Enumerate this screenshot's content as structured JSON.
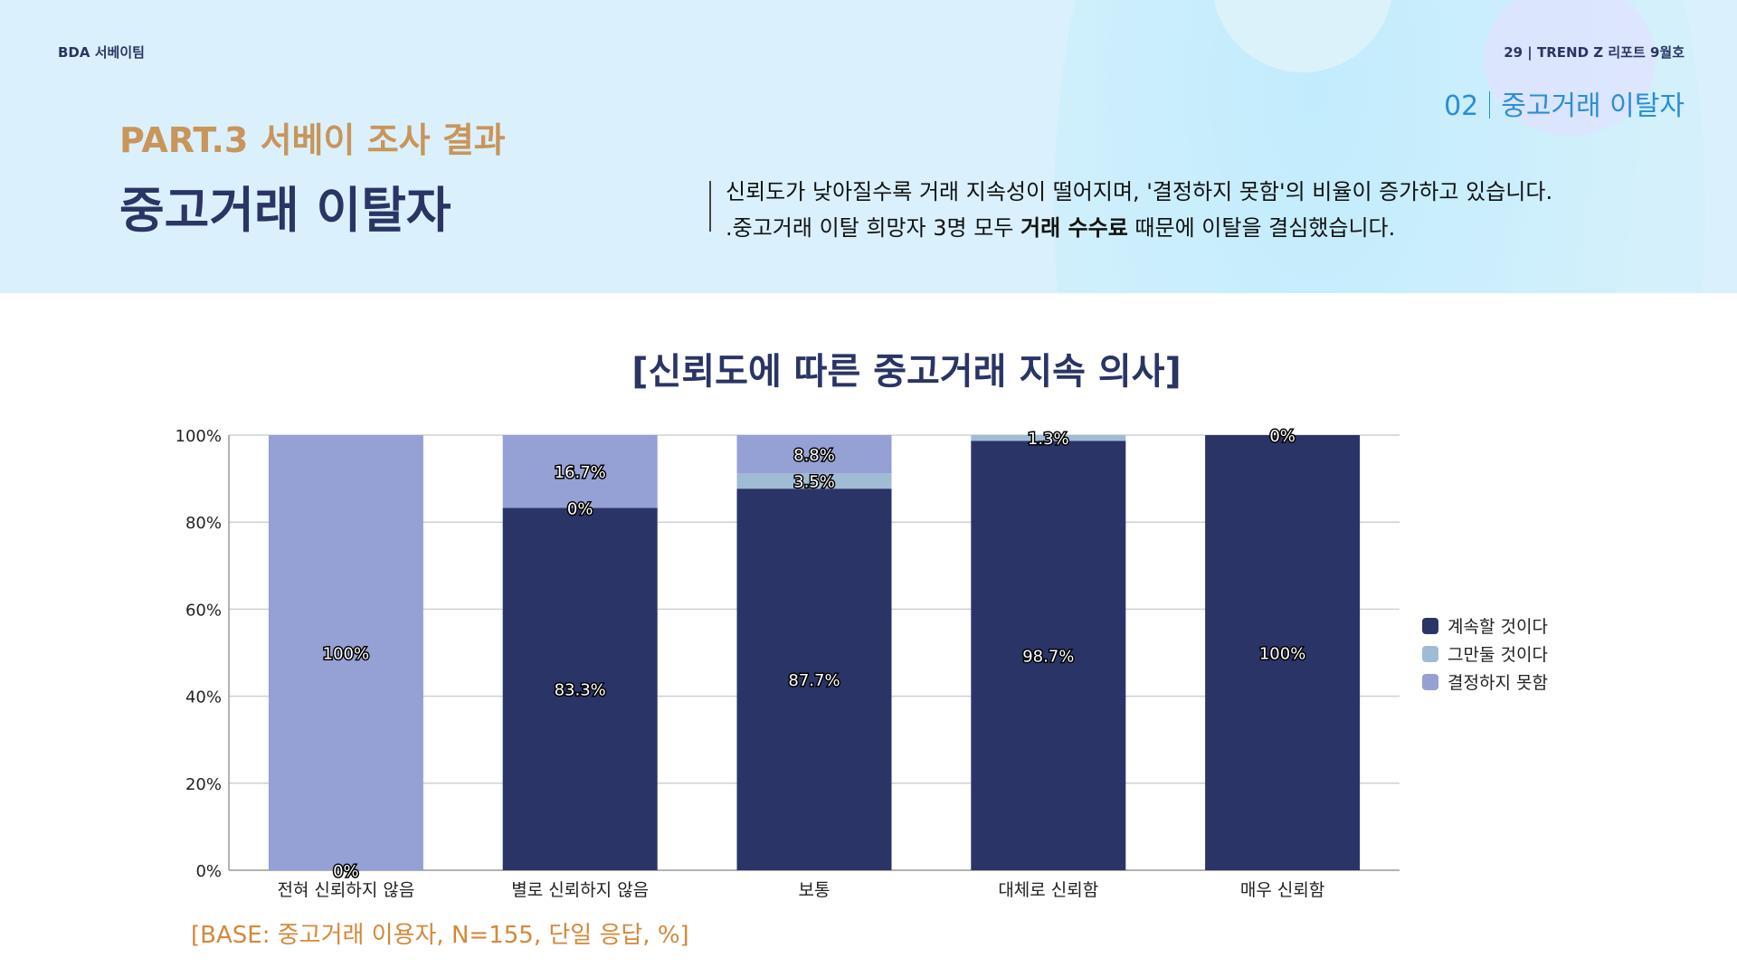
{
  "header": {
    "team": "BDA 서베이팀",
    "issue": "29 | TREND Z 리포트 9월호",
    "section_number": "02",
    "section_title": "중고거래 이탈자",
    "part": "PART.3 서베이 조사 결과",
    "title": "중고거래 이탈자",
    "desc_line1": "신뢰도가 낮아질수록 거래 지속성이 떨어지며, '결정하지 못함'의 비율이 증가하고 있습니다.",
    "desc_line2_pre": ".중고거래 이탈 희망자 3명 모두 ",
    "desc_line2_bold": "거래 수수료",
    "desc_line2_post": " 때문에 이탈을 결심했습니다."
  },
  "chart_data": {
    "type": "bar",
    "stacked": true,
    "title": "[신뢰도에 따른 중고거래 지속 의사]",
    "categories": [
      "전혀 신뢰하지 않음",
      "별로 신뢰하지 않음",
      "보통",
      "대체로 신뢰함",
      "매우 신뢰함"
    ],
    "series": [
      {
        "name": "계속할 것이다",
        "color": "#2b3467",
        "values": [
          0,
          83.3,
          87.7,
          98.7,
          100
        ],
        "label_shown": [
          true,
          true,
          true,
          true,
          true
        ]
      },
      {
        "name": "그만둘 것이다",
        "color": "#a0bcd4",
        "values": [
          0,
          0,
          3.5,
          1.3,
          0
        ],
        "label_shown": [
          false,
          true,
          true,
          true,
          true
        ]
      },
      {
        "name": "결정하지 못함",
        "color": "#95a0d4",
        "values": [
          100,
          16.7,
          8.8,
          0,
          0
        ],
        "label_shown": [
          true,
          true,
          true,
          false,
          false
        ]
      }
    ],
    "ylim": [
      0,
      100
    ],
    "yticks": [
      "0%",
      "20%",
      "40%",
      "60%",
      "80%",
      "100%"
    ],
    "grid": true,
    "legend": "right",
    "note": "[BASE: 중고거래 이용자, N=155, 단일 응답, %]"
  }
}
